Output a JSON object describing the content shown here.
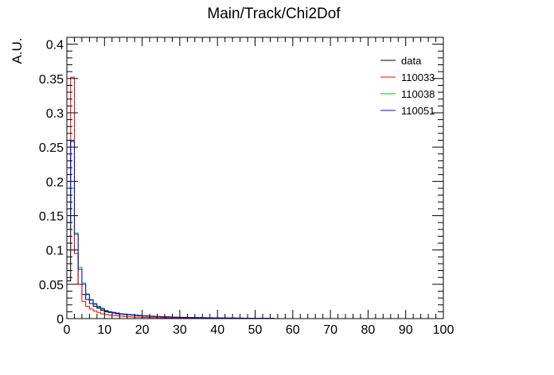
{
  "chart_data": {
    "type": "line",
    "title": "Main/Track/Chi2Dof",
    "xlabel": "",
    "ylabel": "A.U.",
    "xlim": [
      0,
      100
    ],
    "ylim": [
      0,
      0.41
    ],
    "x_ticks": [
      0,
      10,
      20,
      30,
      40,
      50,
      60,
      70,
      80,
      90,
      100
    ],
    "y_ticks": [
      0,
      0.05,
      0.1,
      0.15,
      0.2,
      0.25,
      0.3,
      0.35,
      0.4
    ],
    "x_tick_labels": [
      "0",
      "10",
      "20",
      "30",
      "40",
      "50",
      "60",
      "70",
      "80",
      "90",
      "100"
    ],
    "y_tick_labels": [
      "0",
      "0.05",
      "0.1",
      "0.15",
      "0.2",
      "0.25",
      "0.3",
      "0.35",
      "0.4"
    ],
    "grid": false,
    "legend_position": "top-right",
    "bin_width": 1,
    "series": [
      {
        "name": "data",
        "color": "#000000",
        "values": [
          0.055,
          0.26,
          0.095,
          0.05,
          0.035,
          0.028,
          0.022,
          0.018,
          0.015,
          0.012,
          0.01,
          0.009,
          0.008,
          0.007,
          0.0065,
          0.006,
          0.0055,
          0.005,
          0.0045,
          0.004,
          0.0038,
          0.0035,
          0.0032,
          0.003,
          0.0028,
          0.0026,
          0.0024,
          0.0022,
          0.002,
          0.0019,
          0.0018,
          0.0017,
          0.0016,
          0.0015,
          0.0014,
          0.0013,
          0.0012,
          0.0011,
          0.001,
          0.001,
          0.0009,
          0.0009,
          0.0008,
          0.0008,
          0.0007,
          0.0007,
          0.0006,
          0.0006,
          0.0005,
          0.0005,
          0.0005,
          0.0004,
          0.0004,
          0.0004,
          0.0003
        ]
      },
      {
        "name": "110033",
        "color": "#ff0000",
        "values": [
          0.26,
          0.352,
          0.095,
          0.05,
          0.025,
          0.018,
          0.014,
          0.011,
          0.009,
          0.007,
          0.006,
          0.005,
          0.0045,
          0.004,
          0.0035,
          0.003,
          0.0028,
          0.0025,
          0.0022,
          0.002,
          0.0018,
          0.0016,
          0.0015,
          0.0014,
          0.0013,
          0.0012,
          0.0011,
          0.001,
          0.0009,
          0.0009,
          0.0008,
          0.0008,
          0.0007,
          0.0007,
          0.0006,
          0.0006,
          0.0005,
          0.0005,
          0.0005,
          0.0004,
          0.0004,
          0.0004,
          0.0003,
          0.0003,
          0.0003,
          0.0003,
          0.0002,
          0.0002,
          0.0002,
          0.0002,
          0.0002,
          0.0002,
          0.0001,
          0.0001,
          0.0001
        ]
      },
      {
        "name": "110038",
        "color": "#00cc00",
        "values": [
          0.15,
          0.19,
          0.125,
          0.075,
          0.052,
          0.036,
          0.028,
          0.022,
          0.018,
          0.015,
          0.012,
          0.01,
          0.009,
          0.008,
          0.007,
          0.0065,
          0.006,
          0.0055,
          0.005,
          0.0045,
          0.0042,
          0.004,
          0.0037,
          0.0034,
          0.0031,
          0.0028,
          0.0026,
          0.0024,
          0.0022,
          0.002,
          0.0019,
          0.0018,
          0.0017,
          0.0016,
          0.0015,
          0.0014,
          0.0013,
          0.0012,
          0.0011,
          0.001,
          0.001,
          0.0009,
          0.0009,
          0.0008,
          0.0008,
          0.0007,
          0.0007,
          0.0006,
          0.0006,
          0.0006,
          0.0005,
          0.0005,
          0.0005,
          0.0004,
          0.0004
        ]
      },
      {
        "name": "110051",
        "color": "#0000ff",
        "values": [
          0.14,
          0.258,
          0.123,
          0.072,
          0.05,
          0.035,
          0.027,
          0.021,
          0.017,
          0.014,
          0.011,
          0.01,
          0.009,
          0.008,
          0.007,
          0.0065,
          0.006,
          0.0055,
          0.005,
          0.0045,
          0.004,
          0.0038,
          0.0035,
          0.0032,
          0.003,
          0.0028,
          0.0026,
          0.0024,
          0.0022,
          0.002,
          0.0019,
          0.0018,
          0.0017,
          0.0016,
          0.0015,
          0.0014,
          0.0013,
          0.0012,
          0.0011,
          0.001,
          0.001,
          0.0009,
          0.0009,
          0.0008,
          0.0008,
          0.0007,
          0.0007,
          0.0006,
          0.0006,
          0.0005,
          0.0005,
          0.0005,
          0.0004,
          0.0004,
          0.0004
        ]
      }
    ]
  }
}
